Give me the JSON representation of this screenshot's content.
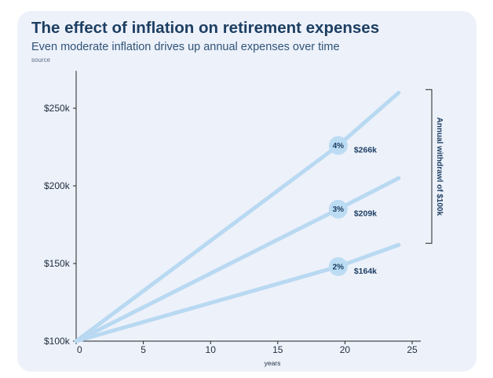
{
  "header": {
    "title": "The effect of inflation on retirement expenses",
    "subtitle": "Even moderate inflation drives up annual expenses over time",
    "source": "source"
  },
  "colors": {
    "card_bg": "#edf1fa",
    "line": "#b8d9f1",
    "marker": "#bcdcf3",
    "text_dark": "#1d3f63",
    "axis": "#222222"
  },
  "chart_data": {
    "type": "line",
    "title": "The effect of inflation on retirement expenses",
    "subtitle": "Even moderate inflation drives up annual expenses over time",
    "xlabel": "years",
    "ylabel": "",
    "xlim": [
      0,
      25
    ],
    "ylim": [
      100000,
      270000
    ],
    "x_ticks": [
      0,
      5,
      10,
      15,
      20,
      25
    ],
    "x_tick_labels": [
      "0",
      "5",
      "10",
      "15",
      "20",
      "25"
    ],
    "y_ticks": [
      100000,
      150000,
      200000,
      250000
    ],
    "y_tick_labels": [
      "$100k",
      "$150k",
      "$200k",
      "$250k"
    ],
    "grid": false,
    "series": [
      {
        "name": "4%",
        "x": [
          0,
          19.5,
          24
        ],
        "y": [
          100000,
          226000,
          260000
        ],
        "marker_x": 19.5,
        "end_label": "$266k"
      },
      {
        "name": "3%",
        "x": [
          0,
          19.5,
          24
        ],
        "y": [
          100000,
          185000,
          205000
        ],
        "marker_x": 19.5,
        "end_label": "$209k"
      },
      {
        "name": "2%",
        "x": [
          0,
          19.5,
          24
        ],
        "y": [
          100000,
          148000,
          162000
        ],
        "marker_x": 19.5,
        "end_label": "$164k"
      }
    ],
    "annotation": {
      "text": "Annual withdrawl of $100k",
      "from": 163000,
      "to": 262000
    }
  }
}
